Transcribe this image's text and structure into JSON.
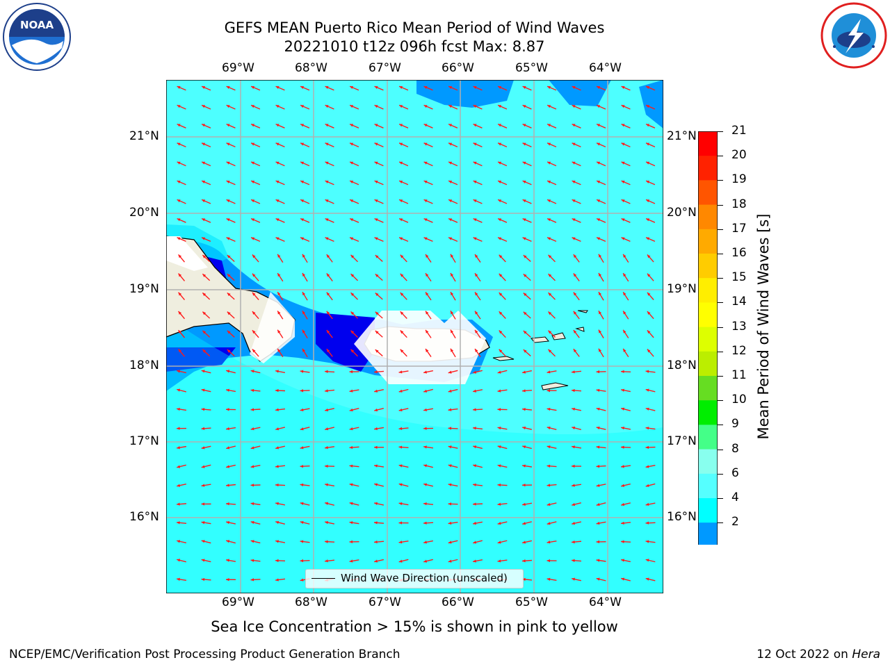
{
  "header": {
    "title_line1": "GEFS MEAN Puerto Rico Mean Period of Wind Waves",
    "title_line2": "20221010 t12z 096h fcst   Max: 8.87"
  },
  "logos": {
    "left": "noaa-logo",
    "right": "nws-logo",
    "noaa_text": "NOAA"
  },
  "map": {
    "lon_labels": [
      "69°W",
      "68°W",
      "67°W",
      "66°W",
      "65°W",
      "64°W"
    ],
    "lat_labels": [
      "21°N",
      "20°N",
      "19°N",
      "18°N",
      "17°N",
      "16°N"
    ],
    "legend_label": "Wind Wave Direction (unscaled)",
    "ocean_color": "#4dffff",
    "land_color": "#efeedf",
    "arrow_color": "#ff1a1a"
  },
  "colorbar": {
    "title": "Mean Period of Wind Waves [s]",
    "labels": [
      "21",
      "20",
      "19",
      "18",
      "17",
      "16",
      "15",
      "14",
      "13",
      "12",
      "11",
      "10",
      "9",
      "8",
      "6",
      "4",
      "2"
    ],
    "colors": [
      "#ff0000",
      "#ff2200",
      "#ff5500",
      "#ff8800",
      "#ffaa00",
      "#ffcc00",
      "#ffee00",
      "#ffff00",
      "#ddff00",
      "#bbee00",
      "#66dd22",
      "#00ee00",
      "#44ff88",
      "#88ffee",
      "#55ffff",
      "#00ffff",
      "#0099ff",
      "#0000ff"
    ]
  },
  "footer": {
    "ice_note": "Sea Ice Concentration > 15% is shown in pink to yellow",
    "left": "NCEP/EMC/Verification Post Processing Product Generation Branch",
    "right_prefix": "12 Oct 2022 on ",
    "right_machine": "Hera"
  }
}
